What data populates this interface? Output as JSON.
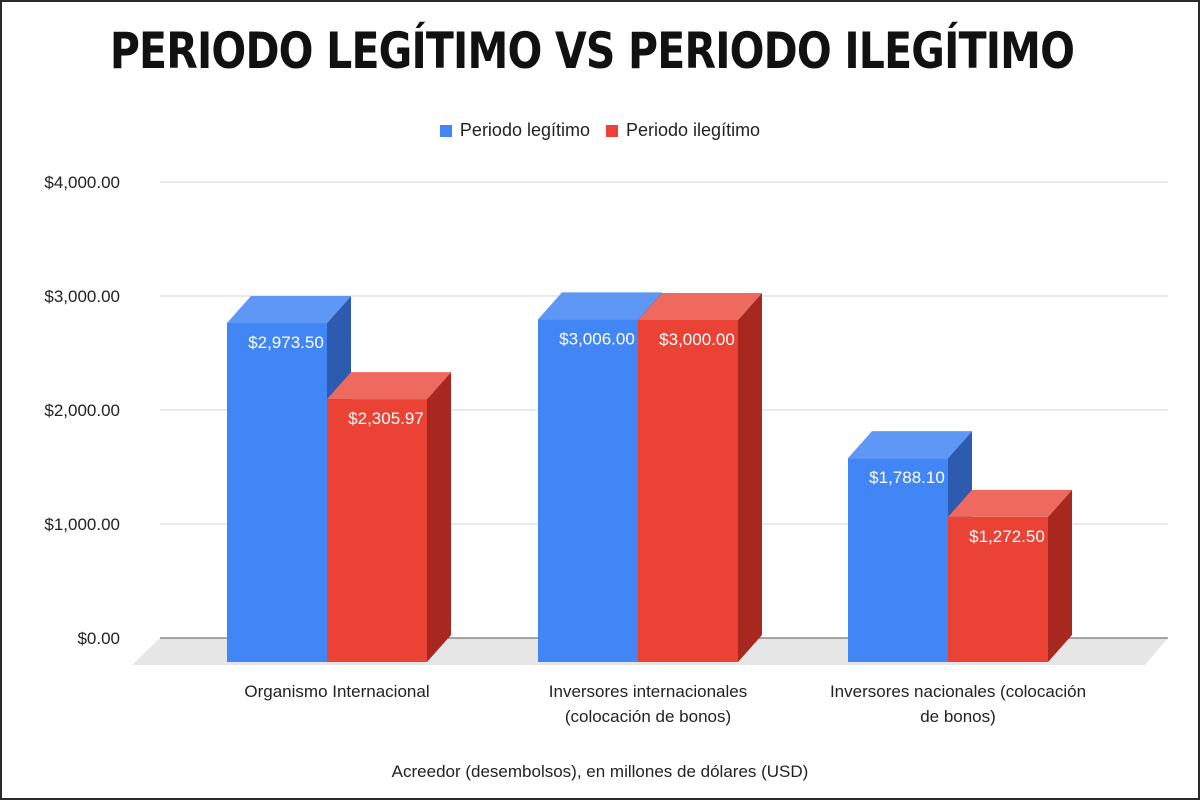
{
  "chart_data": {
    "type": "bar",
    "title": "PERIODO LEGÍTIMO VS PERIODO ILEGÍTIMO",
    "xlabel": "Acreedor (desembolsos), en millones de dólares (USD)",
    "ylabel": "",
    "categories": [
      [
        "Organismo Internacional"
      ],
      [
        "Inversores internacionales",
        "(colocación de bonos)"
      ],
      [
        "Inversores nacionales (colocación",
        "de bonos)"
      ]
    ],
    "series": [
      {
        "name": "Periodo legítimo",
        "color": "#4285f4",
        "side_color": "#2d5bb0",
        "top_color": "#5e97f6",
        "values": [
          2973.5,
          3006.0,
          1788.1
        ],
        "labels": [
          "$2,973.50",
          "$3,006.00",
          "$1,788.10"
        ]
      },
      {
        "name": "Periodo ilegítimo",
        "color": "#ea4335",
        "side_color": "#a8281f",
        "top_color": "#ef6a5e",
        "values": [
          2305.97,
          3000.0,
          1272.5
        ],
        "labels": [
          "$2,305.97",
          "$3,000.00",
          "$1,272.50"
        ]
      }
    ],
    "ylim": [
      0,
      4000
    ],
    "yticks": [
      0,
      1000,
      2000,
      3000,
      4000
    ],
    "ytick_labels": [
      "$0.00",
      "$1,000.00",
      "$2,000.00",
      "$3,000.00",
      "$4,000.00"
    ],
    "grid": true,
    "legend": "top-center",
    "style": "3d"
  }
}
